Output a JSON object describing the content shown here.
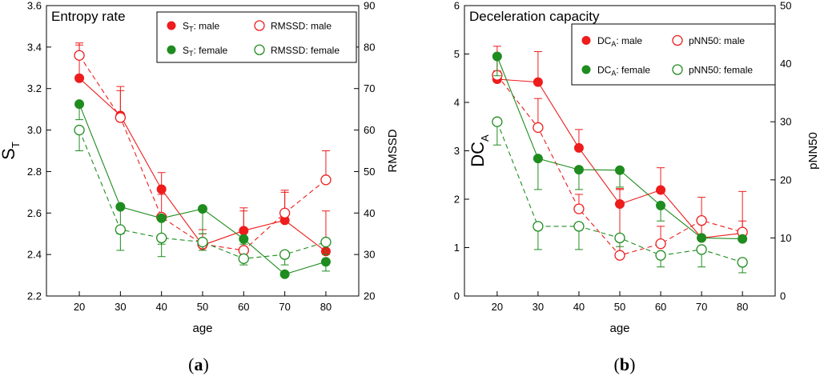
{
  "colors": {
    "male": "#ee1c1c",
    "female": "#1e8c1e"
  },
  "chart_data": [
    {
      "type": "line",
      "panel_label_open": "(",
      "panel_label_letter": "a",
      "panel_label_close": ")",
      "title": "Entropy rate",
      "xlabel": "age",
      "ylabel_left_main": "S",
      "ylabel_left_sub": "T",
      "ylabel_right": "RMSSD",
      "x": [
        20,
        30,
        40,
        50,
        60,
        70,
        80
      ],
      "xlim": [
        12,
        88
      ],
      "ylim_left": [
        2.2,
        3.6
      ],
      "ylim_right": [
        20,
        90
      ],
      "xticks": [
        "20",
        "30",
        "40",
        "50",
        "60",
        "70",
        "80"
      ],
      "yticks_left": [
        "2.2",
        "2.4",
        "2.6",
        "2.8",
        "3.0",
        "3.2",
        "3.4",
        "3.6"
      ],
      "yticks_right": [
        "20",
        "30",
        "40",
        "50",
        "60",
        "70",
        "80",
        "90"
      ],
      "series": [
        {
          "name": "S_T: male",
          "legend_main": "S",
          "legend_sub": "T",
          "legend_rest": ": male",
          "axis": "left",
          "sex": "male",
          "marker": "filled",
          "dashed": false,
          "values": [
            3.25,
            3.07,
            2.715,
            2.445,
            2.515,
            2.565,
            2.415
          ],
          "err_hi": [
            3.41,
            3.21,
            2.795,
            2.52,
            2.625,
            2.7,
            2.61
          ]
        },
        {
          "name": "RMSSD: male",
          "legend_main": "RMSSD: male",
          "legend_sub": "",
          "legend_rest": "",
          "axis": "right",
          "sex": "male",
          "marker": "open",
          "dashed": true,
          "values": [
            78,
            63,
            39,
            32.5,
            31,
            40,
            48
          ],
          "err_hi": [
            81,
            69.5,
            44.5,
            35,
            40.5,
            45.5,
            55
          ]
        },
        {
          "name": "S_T: female",
          "legend_main": "S",
          "legend_sub": "T",
          "legend_rest": ": female",
          "axis": "left",
          "sex": "female",
          "marker": "filled",
          "dashed": false,
          "values": [
            3.125,
            2.63,
            2.575,
            2.62,
            2.475,
            2.305,
            2.365
          ],
          "err_lo": [
            3.05,
            2.5,
            2.45,
            2.5,
            2.45,
            2.31,
            2.32
          ]
        },
        {
          "name": "RMSSD: female",
          "legend_main": "RMSSD: female",
          "legend_sub": "",
          "legend_rest": "",
          "axis": "right",
          "sex": "female",
          "marker": "open",
          "dashed": true,
          "values": [
            60,
            36,
            34,
            33,
            29,
            30,
            33
          ],
          "err_lo": [
            55,
            31,
            29.5,
            31,
            27.5,
            27.5,
            30
          ]
        }
      ]
    },
    {
      "type": "line",
      "panel_label_open": "(",
      "panel_label_letter": "b",
      "panel_label_close": ")",
      "title": "Deceleration capacity",
      "xlabel": "age",
      "ylabel_left_main": "DC",
      "ylabel_left_sub": "A",
      "ylabel_right": "pNN50",
      "x": [
        20,
        30,
        40,
        50,
        60,
        70,
        80
      ],
      "xlim": [
        12,
        88
      ],
      "ylim_left": [
        0,
        6
      ],
      "ylim_right": [
        0,
        50
      ],
      "xticks": [
        "20",
        "30",
        "40",
        "50",
        "60",
        "70",
        "80"
      ],
      "yticks_left": [
        "0",
        "1",
        "2",
        "3",
        "4",
        "5",
        "6"
      ],
      "yticks_right": [
        "0",
        "10",
        "20",
        "30",
        "40",
        "50"
      ],
      "series": [
        {
          "name": "DC_A: male",
          "legend_main": "DC",
          "legend_sub": "A",
          "legend_rest": ": male",
          "axis": "left",
          "sex": "male",
          "marker": "filled",
          "dashed": false,
          "values": [
            4.48,
            4.42,
            3.06,
            1.9,
            2.19,
            1.2,
            1.3
          ],
          "err_hi": [
            4.65,
            5.05,
            3.44,
            2.2,
            2.65,
            1.55,
            1.55
          ]
        },
        {
          "name": "pNN50: male",
          "legend_main": "pNN50: male",
          "legend_sub": "",
          "legend_rest": "",
          "axis": "right",
          "sex": "male",
          "marker": "open",
          "dashed": true,
          "values": [
            38,
            29,
            15,
            7,
            9,
            13,
            11
          ],
          "err_hi": [
            43,
            34,
            17.5,
            18.5,
            12,
            17,
            18
          ]
        },
        {
          "name": "DC_A: female",
          "legend_main": "DC",
          "legend_sub": "A",
          "legend_rest": ": female",
          "axis": "left",
          "sex": "female",
          "marker": "filled",
          "dashed": false,
          "values": [
            4.95,
            2.84,
            2.61,
            2.6,
            1.87,
            1.2,
            1.18
          ],
          "err_lo": [
            4.55,
            2.2,
            2.2,
            2.25,
            1.55,
            1.2,
            1.18
          ]
        },
        {
          "name": "pNN50: female",
          "legend_main": "pNN50: female",
          "legend_sub": "",
          "legend_rest": "",
          "axis": "right",
          "sex": "female",
          "marker": "open",
          "dashed": true,
          "values": [
            30,
            12,
            12,
            10,
            7,
            8,
            5.8
          ],
          "err_lo": [
            26,
            8,
            8,
            8.5,
            5,
            5,
            4
          ]
        }
      ]
    }
  ]
}
